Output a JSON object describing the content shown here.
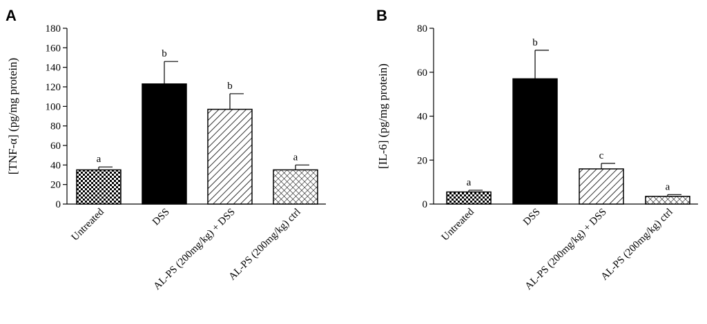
{
  "chart_data": [
    {
      "type": "bar",
      "panel": "A",
      "ylabel": "[TNF-α] (pg/mg protein)",
      "ylim": [
        0,
        180
      ],
      "yticks": [
        0,
        20,
        40,
        60,
        80,
        100,
        120,
        140,
        160,
        180
      ],
      "categories": [
        "Untreated",
        "DSS",
        "AL-PS (200mg/kg) + DSS",
        "AL-PS (200mg/kg) ctrl"
      ],
      "values": [
        35,
        123,
        97,
        35
      ],
      "errors": [
        3,
        23,
        16,
        5
      ],
      "significance": [
        "a",
        "b",
        "b",
        "a"
      ],
      "patterns": [
        "checker",
        "solid",
        "diag",
        "diamond"
      ]
    },
    {
      "type": "bar",
      "panel": "B",
      "ylabel": "[IL-6] (pg/mg protein)",
      "ylim": [
        0,
        80
      ],
      "yticks": [
        0,
        20,
        40,
        60,
        80
      ],
      "categories": [
        "Untreated",
        "DSS",
        "AL-PS (200mg/kg) + DSS",
        "AL-PS (200mg/kg) ctrl"
      ],
      "values": [
        5.5,
        57,
        16,
        3.5
      ],
      "errors": [
        0.8,
        13,
        2.5,
        0.8
      ],
      "significance": [
        "a",
        "b",
        "c",
        "a"
      ],
      "patterns": [
        "checker",
        "solid",
        "diag",
        "diamond"
      ]
    }
  ]
}
